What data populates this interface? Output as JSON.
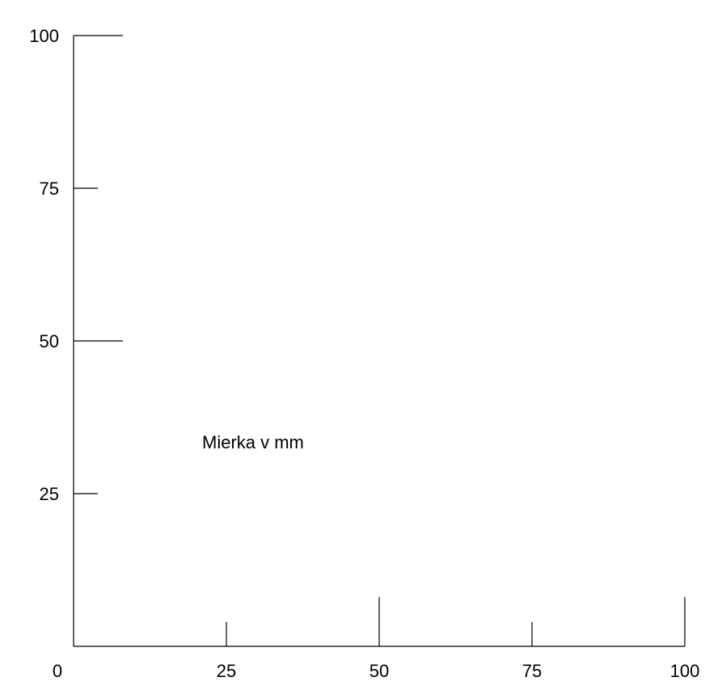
{
  "caption": "Mierka v mm",
  "origin_label": "0",
  "line_color": "#000000",
  "background_color": "#ffffff",
  "x_axis": {
    "range": [
      0,
      100
    ],
    "ticks": [
      {
        "value": 25,
        "label": "25",
        "major": false
      },
      {
        "value": 50,
        "label": "50",
        "major": true
      },
      {
        "value": 75,
        "label": "75",
        "major": false
      },
      {
        "value": 100,
        "label": "100",
        "major": true
      }
    ]
  },
  "y_axis": {
    "range": [
      0,
      100
    ],
    "ticks": [
      {
        "value": 25,
        "label": "25",
        "major": false
      },
      {
        "value": 50,
        "label": "50",
        "major": true
      },
      {
        "value": 75,
        "label": "75",
        "major": false
      },
      {
        "value": 100,
        "label": "100",
        "major": true
      }
    ]
  }
}
